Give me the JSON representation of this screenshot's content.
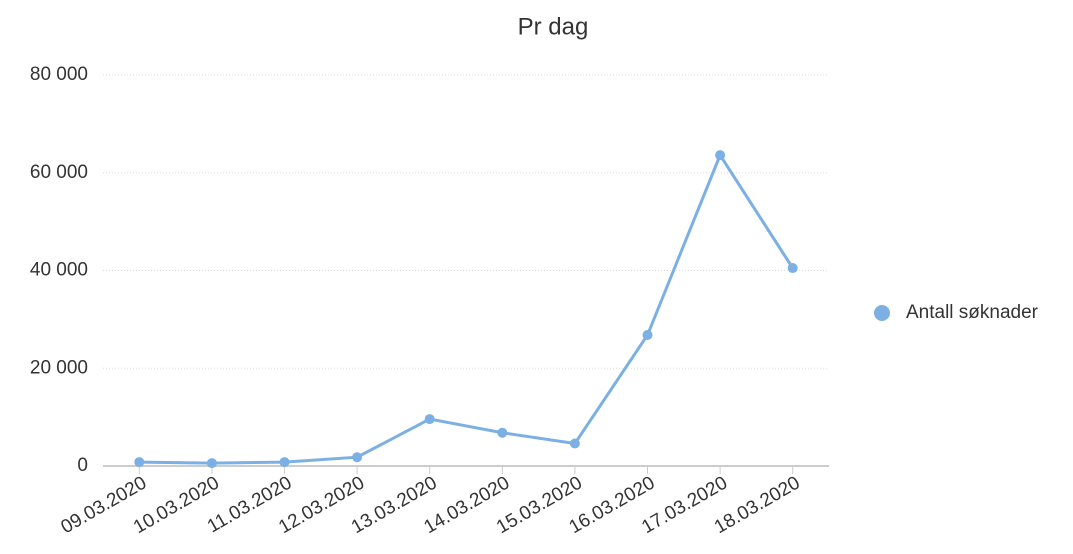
{
  "chart_data": {
    "type": "line",
    "title": "Pr dag",
    "categories": [
      "09.03.2020",
      "10.03.2020",
      "11.03.2020",
      "12.03.2020",
      "13.03.2020",
      "14.03.2020",
      "15.03.2020",
      "16.03.2020",
      "17.03.2020",
      "18.03.2020"
    ],
    "series": [
      {
        "name": "Antall søknader",
        "color": "#7cb0e4",
        "values": [
          800,
          600,
          800,
          1800,
          9600,
          6800,
          4600,
          26800,
          63600,
          40500
        ]
      }
    ],
    "ylim": [
      0,
      80000
    ],
    "yticks": [
      0,
      {
        "value": 20000,
        "label": "20 000"
      },
      {
        "value": 40000,
        "label": "40 000"
      },
      {
        "value": 60000,
        "label": "60 000"
      },
      {
        "value": 80000,
        "label": "80 000"
      }
    ],
    "grid": true,
    "legend": "right"
  }
}
